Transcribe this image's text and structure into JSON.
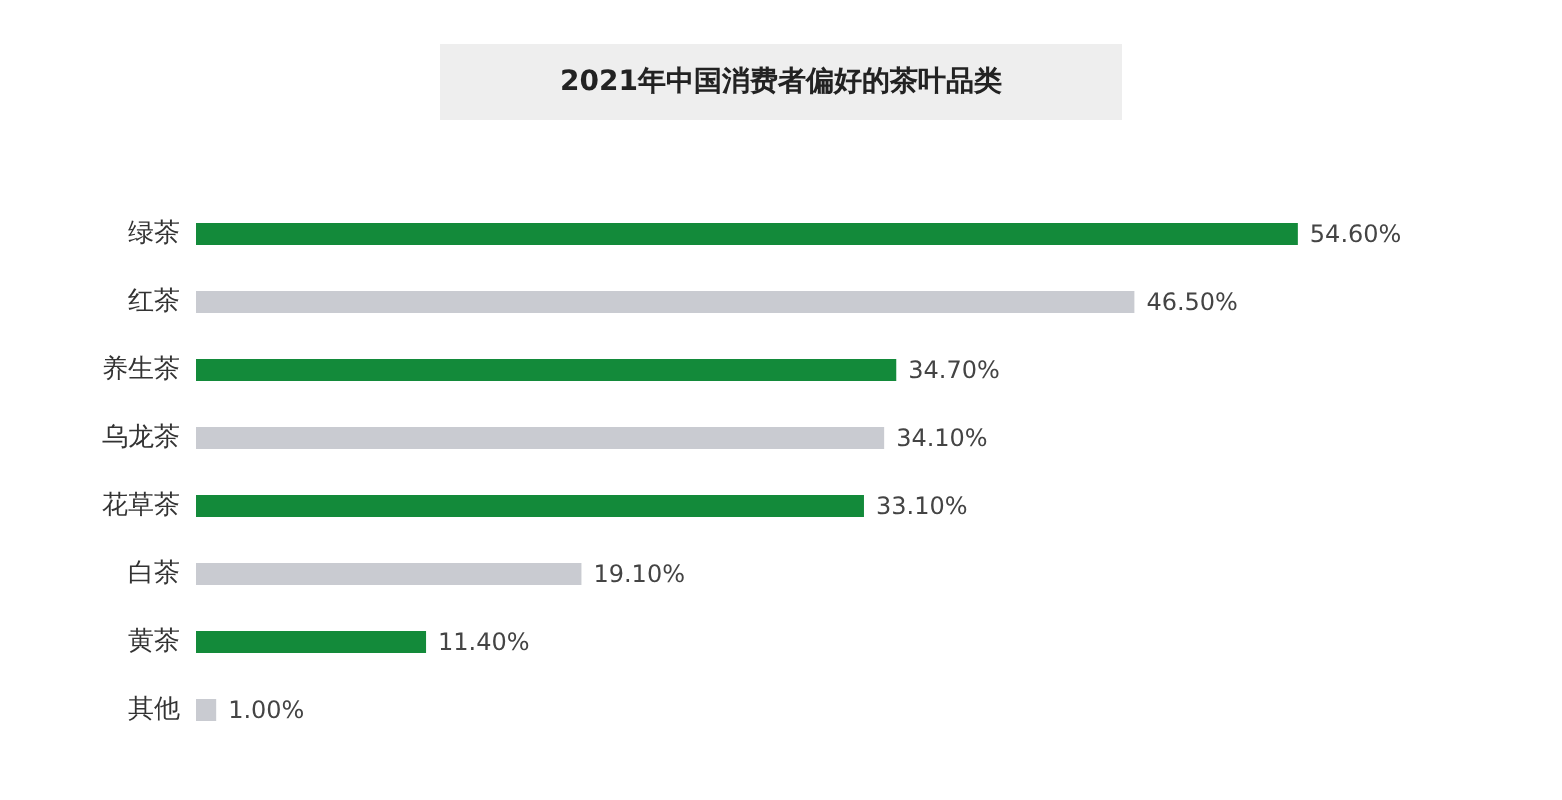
{
  "chart_data": {
    "type": "bar",
    "orientation": "horizontal",
    "title": "2021年中国消费者偏好的茶叶品类",
    "categories": [
      "绿茶",
      "红茶",
      "养生茶",
      "乌龙茶",
      "花草茶",
      "白茶",
      "黄茶",
      "其他"
    ],
    "values": [
      54.6,
      46.5,
      34.7,
      34.1,
      33.1,
      19.1,
      11.4,
      1.0
    ],
    "value_labels": [
      "54.60%",
      "46.50%",
      "34.70%",
      "34.10%",
      "33.10%",
      "19.10%",
      "11.40%",
      "1.00%"
    ],
    "colors": [
      "#138a3a",
      "#c9cbd1",
      "#138a3a",
      "#c9cbd1",
      "#138a3a",
      "#c9cbd1",
      "#138a3a",
      "#c9cbd1"
    ],
    "grid": false
  }
}
